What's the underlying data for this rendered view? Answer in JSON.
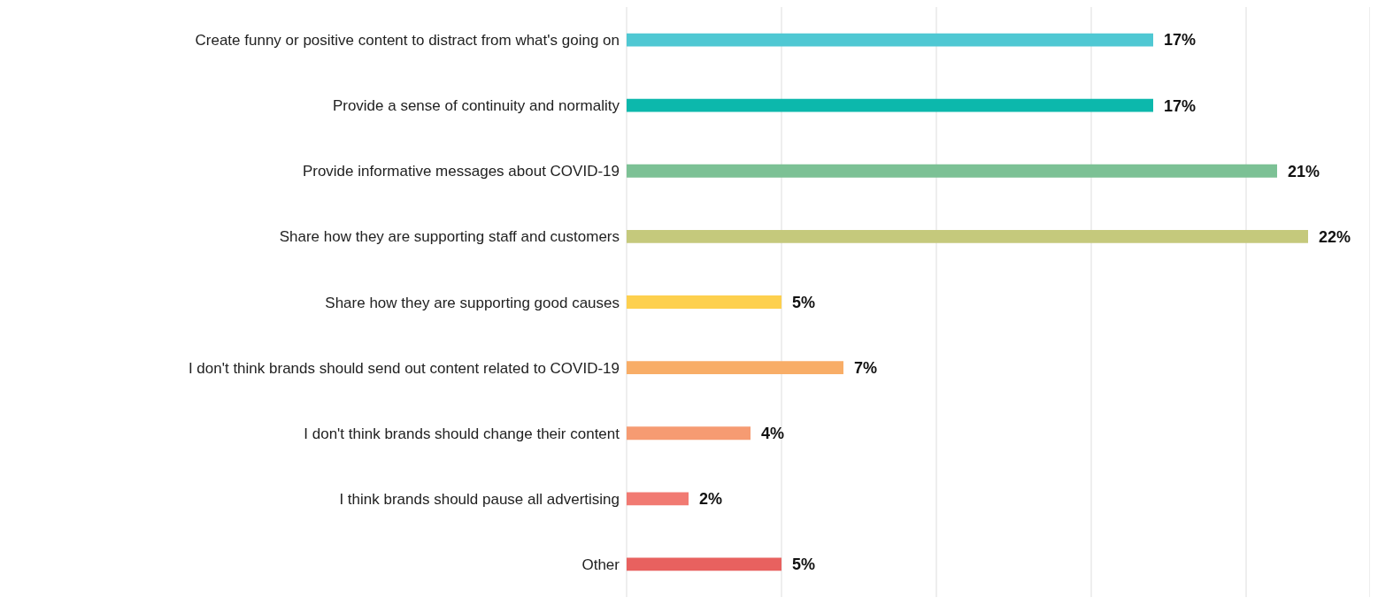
{
  "chart_data": {
    "type": "bar",
    "orientation": "horizontal",
    "categories": [
      "Create funny or positive content to distract from what's going on",
      "Provide a sense of continuity and normality",
      "Provide informative messages about COVID-19",
      "Share how they are supporting staff and customers",
      "Share how they are supporting good causes",
      "I don't think brands should send out content related to COVID-19",
      "I don't think brands should change their content",
      "I think brands should pause all advertising",
      "Other"
    ],
    "values": [
      17,
      17,
      21,
      22,
      5,
      7,
      4,
      2,
      5
    ],
    "value_labels": [
      "17%",
      "17%",
      "21%",
      "22%",
      "5%",
      "7%",
      "4%",
      "2%",
      "5%"
    ],
    "colors": [
      "#4fc8d3",
      "#0cb8ac",
      "#7cc195",
      "#c5c97c",
      "#fdd04e",
      "#f8ad67",
      "#f69b72",
      "#f17a72",
      "#e8615f"
    ],
    "xlim": [
      0,
      24
    ],
    "tick_labels": "y",
    "grid": "x"
  }
}
